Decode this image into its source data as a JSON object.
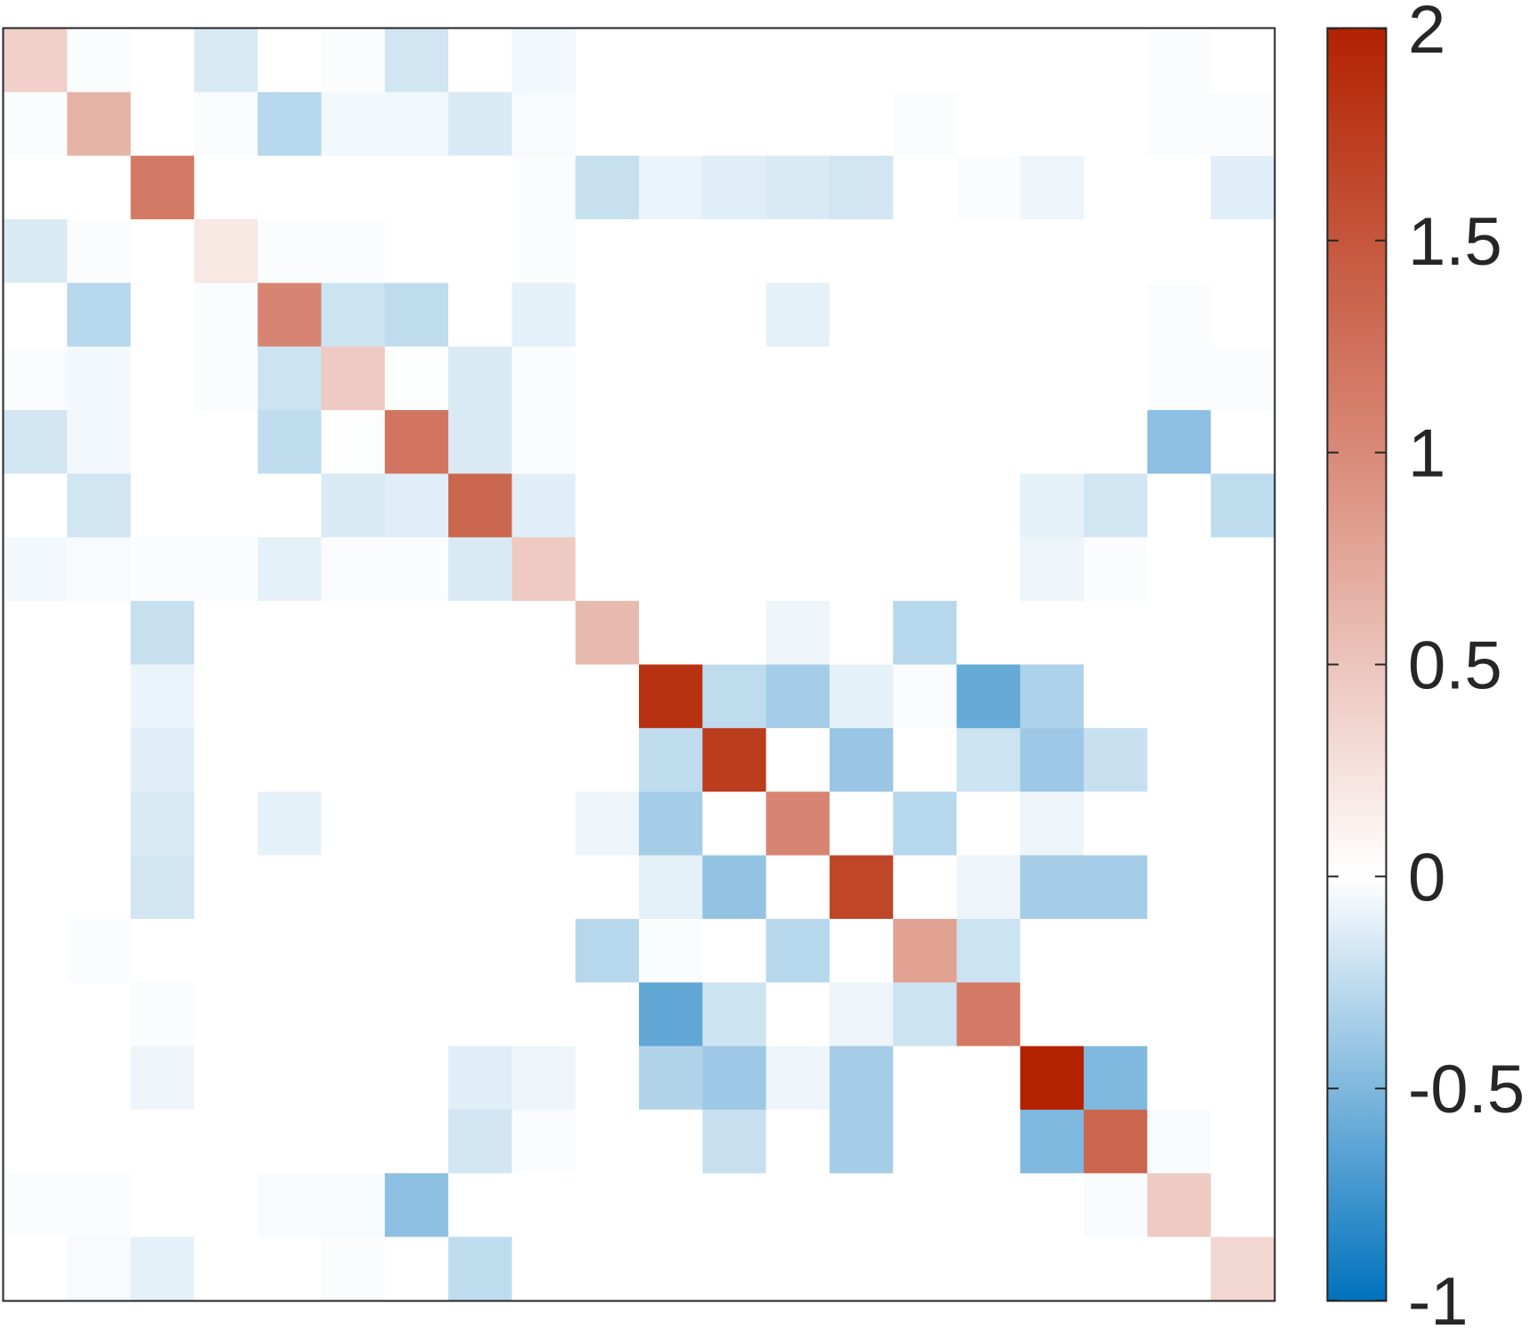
{
  "chart_data": {
    "type": "heatmap",
    "title": "",
    "xlabel": "",
    "ylabel": "",
    "rows": 20,
    "cols": 20,
    "grid": false,
    "colorbar": {
      "position": "right",
      "range": [
        -1,
        2
      ],
      "ticks": [
        2,
        1.5,
        1,
        0.5,
        0,
        -0.5,
        -1
      ],
      "tick_labels": [
        "2",
        "1.5",
        "1",
        "0.5",
        "0",
        "-0.5",
        "-1"
      ],
      "colormap": [
        {
          "value": -1,
          "color": "#0072BD"
        },
        {
          "value": -0.5,
          "color": "#7FB8DE"
        },
        {
          "value": 0,
          "color": "#FFFFFF"
        },
        {
          "value": 1,
          "color": "#D98A78"
        },
        {
          "value": 2,
          "color": "#B22200"
        }
      ]
    },
    "values": [
      [
        0.4,
        -0.02,
        0,
        -0.15,
        0,
        -0.02,
        -0.18,
        0,
        -0.05,
        0,
        0,
        0,
        0,
        0,
        0,
        0,
        0,
        0,
        -0.02,
        0
      ],
      [
        -0.02,
        0.65,
        0,
        -0.02,
        -0.28,
        -0.05,
        -0.05,
        -0.15,
        -0.03,
        0,
        0,
        0,
        0,
        0,
        -0.02,
        0,
        0,
        0,
        -0.02,
        -0.02
      ],
      [
        0,
        0,
        1.15,
        0,
        0,
        0,
        0,
        0,
        -0.02,
        -0.22,
        -0.08,
        -0.12,
        -0.15,
        -0.18,
        0,
        -0.02,
        -0.07,
        0,
        0,
        -0.12
      ],
      [
        -0.15,
        -0.02,
        0,
        0.2,
        -0.02,
        -0.02,
        0,
        0,
        -0.02,
        0,
        0,
        0,
        0,
        0,
        0,
        0,
        0,
        0,
        0,
        0
      ],
      [
        0,
        -0.28,
        0,
        -0.02,
        1.05,
        -0.2,
        -0.25,
        0,
        -0.1,
        0,
        0,
        0,
        -0.1,
        0,
        0,
        0,
        0,
        0,
        -0.02,
        0
      ],
      [
        -0.02,
        -0.05,
        0,
        -0.02,
        -0.2,
        0.45,
        -0.01,
        -0.15,
        -0.02,
        0,
        0,
        0,
        0,
        0,
        0,
        0,
        0,
        0,
        -0.02,
        -0.02
      ],
      [
        -0.18,
        -0.05,
        0,
        0,
        -0.25,
        -0.01,
        1.2,
        -0.15,
        -0.02,
        0,
        0,
        0,
        0,
        0,
        0,
        0,
        0,
        0,
        -0.45,
        0
      ],
      [
        0,
        -0.18,
        0,
        0,
        0,
        -0.15,
        -0.12,
        1.35,
        -0.12,
        0,
        0,
        0,
        0,
        0,
        0,
        0,
        -0.1,
        -0.18,
        0,
        -0.25
      ],
      [
        -0.05,
        -0.03,
        -0.02,
        -0.02,
        -0.1,
        -0.02,
        -0.02,
        -0.15,
        0.45,
        0,
        0,
        0,
        0,
        0,
        0,
        0,
        -0.07,
        -0.02,
        0,
        0
      ],
      [
        0,
        0,
        -0.22,
        0,
        0,
        0,
        0,
        0,
        0,
        0.6,
        0,
        0,
        -0.07,
        0,
        -0.28,
        0,
        0,
        0,
        0,
        0
      ],
      [
        0,
        0,
        -0.08,
        0,
        0,
        0,
        0,
        0,
        0,
        0,
        1.85,
        -0.25,
        -0.35,
        -0.1,
        -0.02,
        -0.6,
        -0.32,
        0,
        0,
        0
      ],
      [
        0,
        0,
        -0.12,
        0,
        0,
        0,
        0,
        0,
        0,
        0,
        -0.25,
        1.75,
        0,
        -0.4,
        0,
        -0.2,
        -0.38,
        -0.22,
        0,
        0
      ],
      [
        0,
        0,
        -0.15,
        0,
        -0.1,
        0,
        0,
        0,
        0,
        -0.07,
        -0.35,
        0,
        1.05,
        0,
        -0.28,
        0,
        -0.07,
        0,
        0,
        0
      ],
      [
        0,
        0,
        -0.18,
        0,
        0,
        0,
        0,
        0,
        0,
        0,
        -0.1,
        -0.42,
        0,
        1.65,
        0,
        -0.07,
        -0.35,
        -0.35,
        0,
        0
      ],
      [
        0,
        -0.02,
        0,
        0,
        0,
        0,
        0,
        0,
        0,
        -0.28,
        -0.02,
        0,
        -0.28,
        0,
        0.8,
        -0.2,
        0,
        0,
        0,
        0
      ],
      [
        0,
        0,
        -0.02,
        0,
        0,
        0,
        0,
        0,
        0,
        0,
        -0.62,
        -0.2,
        0,
        -0.07,
        -0.2,
        1.15,
        0,
        0,
        0,
        0
      ],
      [
        0,
        0,
        -0.07,
        0,
        0,
        0,
        0,
        -0.12,
        -0.07,
        0,
        -0.3,
        -0.38,
        -0.07,
        -0.35,
        0,
        0,
        2.0,
        -0.5,
        0,
        0
      ],
      [
        0,
        0,
        0,
        0,
        0,
        0,
        0,
        -0.18,
        -0.02,
        0,
        0,
        -0.22,
        0,
        -0.35,
        0,
        0,
        -0.5,
        1.35,
        -0.03,
        0
      ],
      [
        -0.02,
        -0.02,
        0,
        0,
        -0.03,
        -0.03,
        -0.45,
        0,
        0,
        0,
        0,
        0,
        0,
        0,
        0,
        0,
        0,
        -0.03,
        0.45,
        0
      ],
      [
        0,
        -0.03,
        -0.1,
        0,
        0,
        -0.02,
        0,
        -0.25,
        0,
        0,
        0,
        0,
        0,
        0,
        0,
        0,
        0,
        0,
        0,
        0.35
      ]
    ]
  }
}
